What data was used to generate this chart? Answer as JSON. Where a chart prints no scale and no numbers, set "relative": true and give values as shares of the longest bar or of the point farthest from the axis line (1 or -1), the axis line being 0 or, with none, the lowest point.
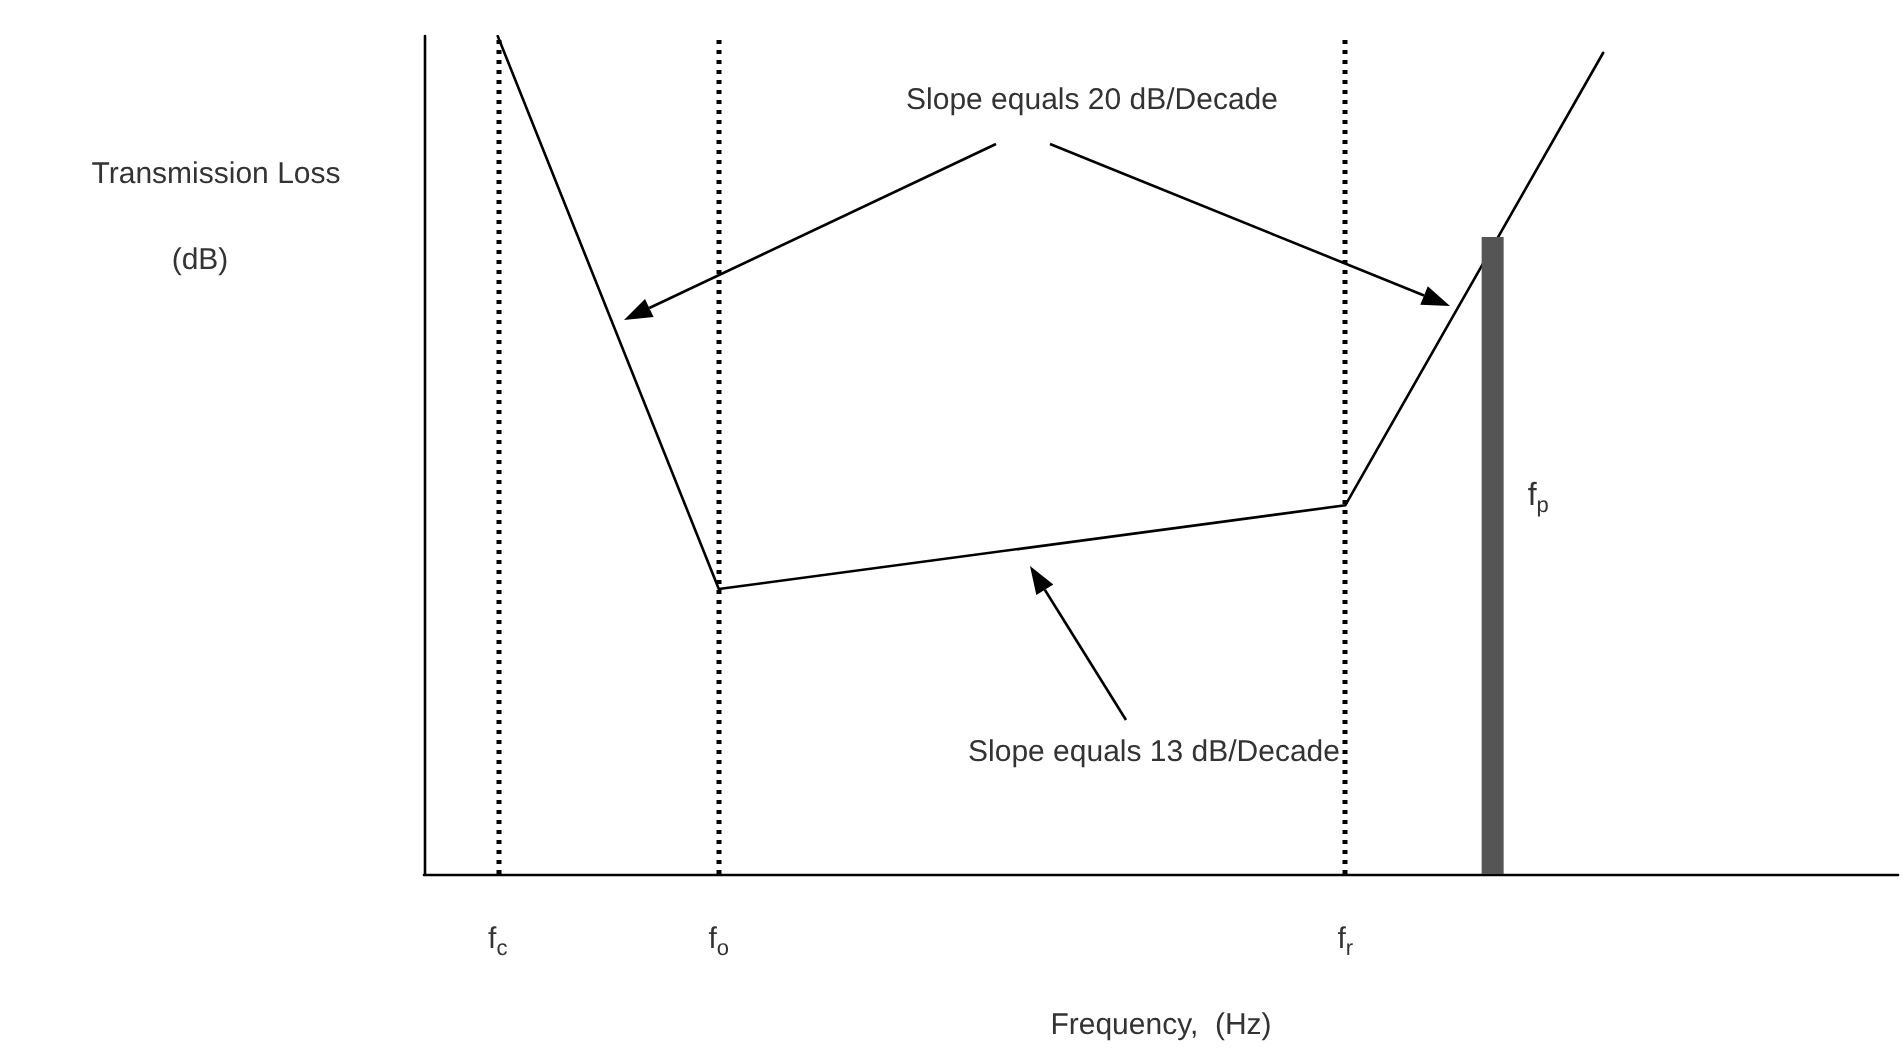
{
  "chart_data": {
    "type": "line",
    "relative": true,
    "xlabel": "Frequency,  (Hz)",
    "ylabel": "Transmission Loss\n(dB)",
    "categories": [
      null,
      null,
      "f$_{c}$",
      null,
      null,
      null,
      null,
      null,
      "f$_{o}$",
      null,
      null,
      null,
      null,
      null,
      null,
      null,
      null,
      null,
      null,
      null,
      null,
      null,
      null,
      null,
      null,
      "f$_{r}$",
      null,
      null,
      null,
      null,
      null,
      null,
      null,
      null,
      null,
      null,
      null,
      null,
      null,
      null,
      null
    ],
    "tick_labels": "x",
    "grid": false,
    "legend": false,
    "marker": "none",
    "line_style": "solid",
    "series": [
      {
        "color": "#000000",
        "values": [
          null,
          null,
          1,
          null,
          null,
          null,
          null,
          null,
          0.34,
          null,
          null,
          null,
          null,
          null,
          null,
          null,
          null,
          null,
          null,
          null,
          null,
          null,
          null,
          null,
          null,
          0.44,
          null,
          null,
          null,
          null,
          null,
          null,
          0.98,
          null,
          null,
          null,
          null,
          null,
          null,
          null,
          null
        ]
      },
      {
        "type": "bar",
        "name": "f$_{p}$",
        "color": "#555555",
        "values": [
          null,
          null,
          null,
          null,
          null,
          null,
          null,
          null,
          null,
          null,
          null,
          null,
          null,
          null,
          null,
          null,
          null,
          null,
          null,
          null,
          null,
          null,
          null,
          null,
          null,
          null,
          null,
          null,
          null,
          0.76,
          null,
          null,
          null,
          null,
          null,
          null,
          null,
          null,
          null,
          null,
          null
        ]
      }
    ],
    "ref_lines": [
      {
        "axis": "x",
        "value": "f$_{c}$",
        "color": "#000000",
        "line_style": "dotted"
      },
      {
        "axis": "x",
        "value": "f$_{o}$",
        "color": "#000000",
        "line_style": "dotted"
      },
      {
        "axis": "x",
        "value": "f$_{r}$",
        "color": "#000000",
        "line_style": "dotted"
      }
    ],
    "annotations": [
      "Slope equals 20 dB/Decade",
      "Slope equals 13 dB/Decade"
    ]
  }
}
